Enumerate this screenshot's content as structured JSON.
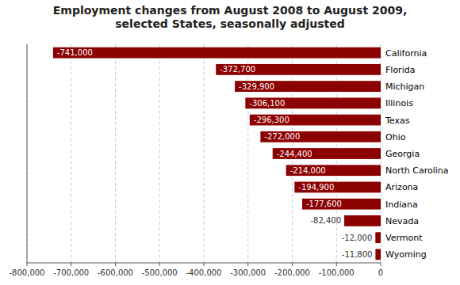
{
  "chart_data": {
    "type": "bar",
    "orientation": "horizontal",
    "title": "Employment changes from August 2008 to August 2009,\nselected States, seasonally adjusted",
    "categories": [
      "Wyoming",
      "Vermont",
      "Nevada",
      "Indiana",
      "Arizona",
      "North Carolina",
      "Georgia",
      "Ohio",
      "Texas",
      "Illinois",
      "Michigan",
      "Florida",
      "California"
    ],
    "values": [
      -11800,
      -12000,
      -82400,
      -177600,
      -194900,
      -214000,
      -244400,
      -272000,
      -296300,
      -306100,
      -329900,
      -372700,
      -741000
    ],
    "value_labels": [
      "-11,800",
      "-12,000",
      "-82,400",
      "-177,600",
      "-194,900",
      "-214,000",
      "-244,400",
      "-272,000",
      "-296,300",
      "-306,100",
      "-329,900",
      "-372,700",
      "-741,000"
    ],
    "data_labels": true,
    "color": "#8B0000",
    "xlim": [
      -800000,
      0
    ],
    "xticks": [
      {
        "value": -800000,
        "label": "-800,000"
      },
      {
        "value": -700000,
        "label": "-700,000"
      },
      {
        "value": -600000,
        "label": "-600,000"
      },
      {
        "value": -500000,
        "label": "-500,000"
      },
      {
        "value": -400000,
        "label": "-400,000"
      },
      {
        "value": -300000,
        "label": "-300,000"
      },
      {
        "value": -200000,
        "label": "-200,000"
      },
      {
        "value": -100000,
        "label": "-100,000"
      },
      0
    ],
    "grid": true
  }
}
